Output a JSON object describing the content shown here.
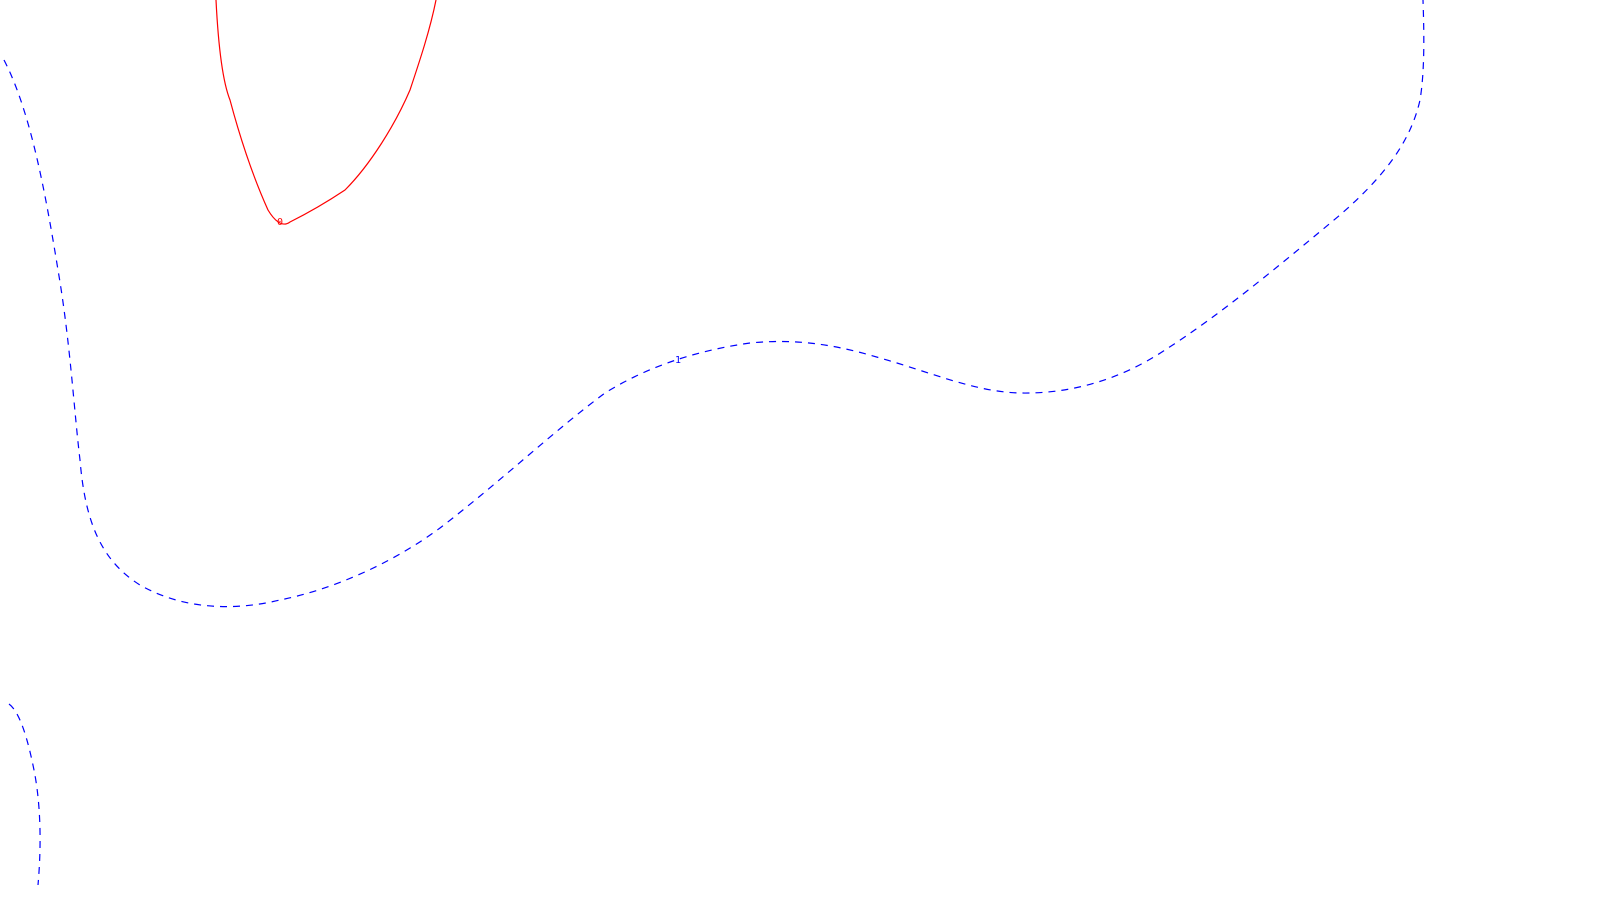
{
  "contours": [
    {
      "id": "contour-zero",
      "label": "0",
      "color": "#ff0000",
      "line_style": "solid"
    },
    {
      "id": "contour-one",
      "label": "1",
      "color": "#0000ff",
      "line_style": "dashed"
    },
    {
      "id": "contour-one-lower-left",
      "label": "",
      "color": "#0000ff",
      "line_style": "dashed"
    }
  ]
}
